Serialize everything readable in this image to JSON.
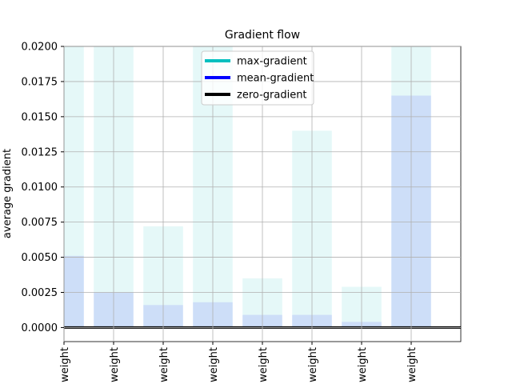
{
  "chart_data": {
    "type": "bar",
    "title": "Gradient flow",
    "ylabel": "average gradient",
    "categories": [
      "weight",
      "weight",
      "weight",
      "weight",
      "weight",
      "weight",
      "weight",
      "weight"
    ],
    "series": [
      {
        "name": "max-gradient",
        "color": "#00bfbf",
        "values": [
          0.02,
          0.02,
          0.0072,
          0.02,
          0.0035,
          0.014,
          0.0029,
          0.02
        ]
      },
      {
        "name": "mean-gradient",
        "color": "#0000ff",
        "values": [
          0.0051,
          0.0025,
          0.0016,
          0.0018,
          0.0009,
          0.0009,
          0.0004,
          0.0165
        ]
      }
    ],
    "hline": {
      "name": "zero-gradient",
      "value": 0,
      "color": "#000000"
    },
    "xlim": [
      0,
      8
    ],
    "ylim": [
      -0.001,
      0.02
    ],
    "yticks": [
      {
        "value": 0,
        "label": "0.0000"
      },
      {
        "value": 0.0025,
        "label": "0.0025"
      },
      {
        "value": 0.005,
        "label": "0.0050"
      },
      {
        "value": 0.0075,
        "label": "0.0075"
      },
      {
        "value": 0.01,
        "label": "0.0100"
      },
      {
        "value": 0.0125,
        "label": "0.0125"
      },
      {
        "value": 0.015,
        "label": "0.0150"
      },
      {
        "value": 0.0175,
        "label": "0.0175"
      },
      {
        "value": 0.02,
        "label": "0.0200"
      }
    ],
    "grid": true,
    "legend": "upper center"
  }
}
